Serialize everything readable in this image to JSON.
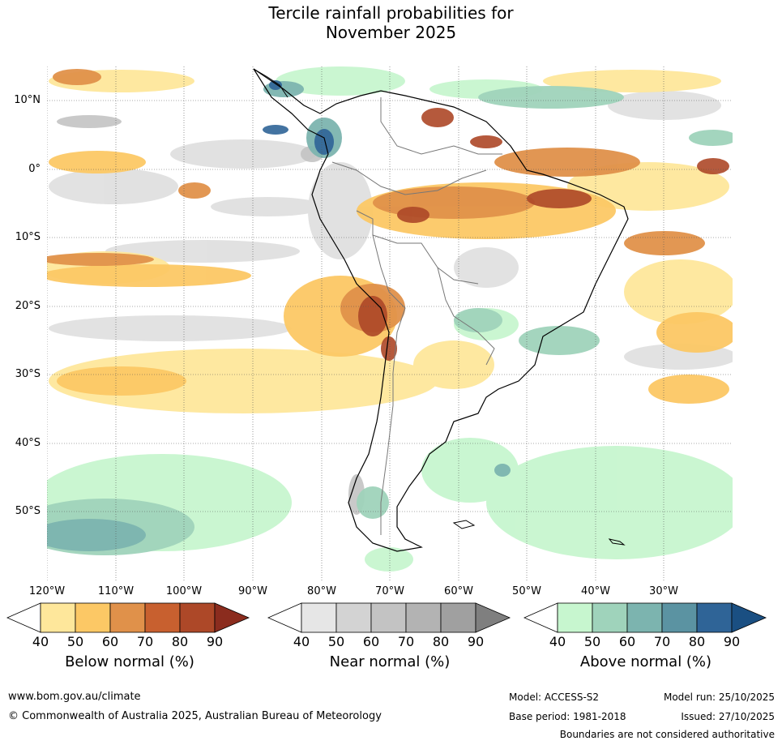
{
  "title_line1": "Tercile rainfall probabilities for",
  "title_line2": "November 2025",
  "map": {
    "region": "South America",
    "lat_labels": [
      "10°N",
      "0°",
      "10°S",
      "20°S",
      "30°S",
      "40°S",
      "50°S"
    ],
    "lon_labels": [
      "120°W",
      "110°W",
      "100°W",
      "90°W",
      "80°W",
      "70°W",
      "60°W",
      "50°W",
      "40°W",
      "30°W"
    ]
  },
  "colorbars": {
    "below": {
      "title": "Below normal (%)",
      "ticks": [
        "40",
        "50",
        "60",
        "70",
        "80",
        "90"
      ],
      "colors": [
        "#ffffff",
        "#fee79b",
        "#fcc865",
        "#e0914a",
        "#c8602f",
        "#ad4828",
        "#8b2c1e"
      ]
    },
    "near": {
      "title": "Near normal (%)",
      "ticks": [
        "40",
        "50",
        "60",
        "70",
        "80",
        "90"
      ],
      "colors": [
        "#ffffff",
        "#e6e6e6",
        "#d3d3d3",
        "#c3c3c3",
        "#b3b3b3",
        "#a0a0a0",
        "#7f7f7f"
      ]
    },
    "above": {
      "title": "Above normal (%)",
      "ticks": [
        "40",
        "50",
        "60",
        "70",
        "80",
        "90"
      ],
      "colors": [
        "#ffffff",
        "#c7f6cf",
        "#9fd3bb",
        "#7cb4af",
        "#5b93a2",
        "#2f6497",
        "#1a4f82"
      ]
    }
  },
  "footer": {
    "website": "www.bom.gov.au/climate",
    "copyright": "© Commonwealth of Australia 2025, Australian Bureau of Meteorology",
    "model": "Model: ACCESS-S2",
    "base_period": "Base period: 1981-2018",
    "model_run": "Model run: 25/10/2025",
    "issued": "Issued: 27/10/2025",
    "disclaimer": "Boundaries are not considered authoritative"
  }
}
